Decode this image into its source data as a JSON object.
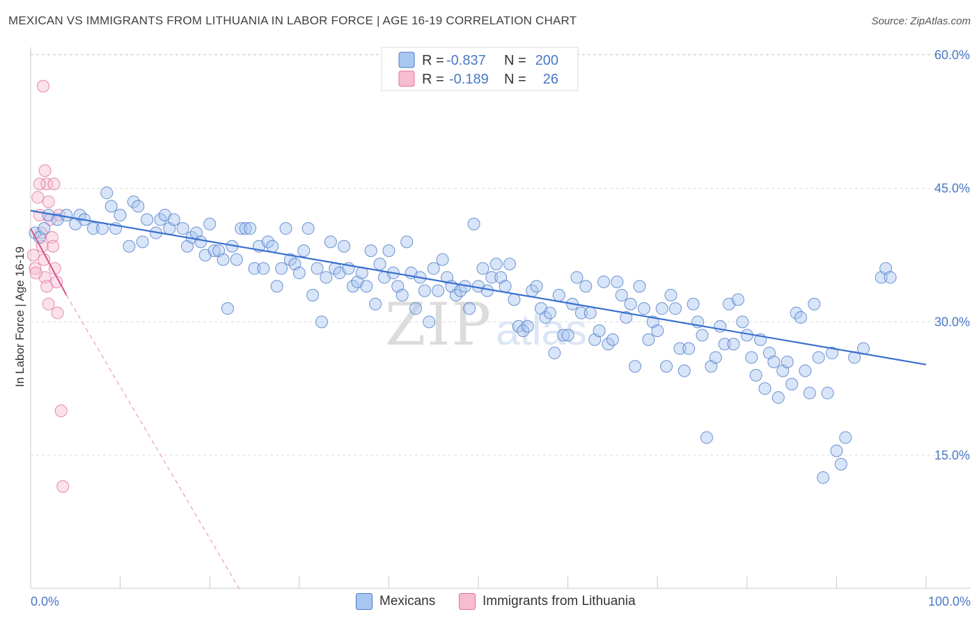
{
  "chart_data": {
    "type": "scatter",
    "title": "MEXICAN VS IMMIGRANTS FROM LITHUANIA IN LABOR FORCE | AGE 16-19 CORRELATION CHART",
    "source": "Source: ZipAtlas.com",
    "ylabel": "In Labor Force | Age 16-19",
    "xlabel": "",
    "xlim": [
      0,
      100
    ],
    "ylim": [
      0,
      62
    ],
    "x_tick_labels": [
      "0.0%",
      "100.0%"
    ],
    "y_ticks": [
      15,
      30,
      45,
      60
    ],
    "y_tick_labels": [
      "15.0%",
      "30.0%",
      "45.0%",
      "60.0%"
    ],
    "grid": true,
    "watermark": "ZIPatlas",
    "legend_position": "top-center",
    "stats": [
      {
        "series": "Mexicans",
        "r_label": "R =",
        "r": "-0.837",
        "n_label": "N =",
        "n": "200"
      },
      {
        "series": "Immigrants from Lithuania",
        "r_label": "R =",
        "r": "-0.189",
        "n_label": "N =",
        "n": "26"
      }
    ],
    "series": [
      {
        "name": "Mexicans",
        "color": "#4a78c6",
        "fill": "#a8c6f0",
        "trend": {
          "x": [
            0,
            100
          ],
          "y": [
            42.5,
            25.2
          ]
        },
        "points": [
          [
            0.5,
            40
          ],
          [
            1,
            39.5
          ],
          [
            1.5,
            40.5
          ],
          [
            2,
            42
          ],
          [
            3,
            41.5
          ],
          [
            4,
            42
          ],
          [
            5,
            41
          ],
          [
            5.5,
            42
          ],
          [
            6,
            41.5
          ],
          [
            7,
            40.5
          ],
          [
            8,
            40.5
          ],
          [
            8.5,
            44.5
          ],
          [
            9,
            43
          ],
          [
            9.5,
            40.5
          ],
          [
            10,
            42
          ],
          [
            11,
            38.5
          ],
          [
            11.5,
            43.5
          ],
          [
            12,
            43
          ],
          [
            12.5,
            39
          ],
          [
            13,
            41.5
          ],
          [
            14,
            40
          ],
          [
            14.5,
            41.5
          ],
          [
            15,
            42
          ],
          [
            15.5,
            40.5
          ],
          [
            16,
            41.5
          ],
          [
            17,
            40.5
          ],
          [
            17.5,
            38.5
          ],
          [
            18,
            39.5
          ],
          [
            18.5,
            40
          ],
          [
            19,
            39
          ],
          [
            19.5,
            37.5
          ],
          [
            20,
            41
          ],
          [
            20.5,
            38
          ],
          [
            21,
            38
          ],
          [
            21.5,
            37
          ],
          [
            22,
            31.5
          ],
          [
            22.5,
            38.5
          ],
          [
            23,
            37
          ],
          [
            23.5,
            40.5
          ],
          [
            24,
            40.5
          ],
          [
            24.5,
            40.5
          ],
          [
            25,
            36
          ],
          [
            25.5,
            38.5
          ],
          [
            26,
            36
          ],
          [
            26.5,
            39
          ],
          [
            27,
            38.5
          ],
          [
            27.5,
            34
          ],
          [
            28,
            36
          ],
          [
            28.5,
            40.5
          ],
          [
            29,
            37
          ],
          [
            29.5,
            36.5
          ],
          [
            30,
            35.5
          ],
          [
            30.5,
            38
          ],
          [
            31,
            40.5
          ],
          [
            31.5,
            33
          ],
          [
            32,
            36
          ],
          [
            32.5,
            30
          ],
          [
            33,
            35
          ],
          [
            33.5,
            39
          ],
          [
            34,
            36
          ],
          [
            34.5,
            35.5
          ],
          [
            35,
            38.5
          ],
          [
            35.5,
            36
          ],
          [
            36,
            34
          ],
          [
            36.5,
            34.5
          ],
          [
            37,
            35.5
          ],
          [
            37.5,
            34
          ],
          [
            38,
            38
          ],
          [
            38.5,
            32
          ],
          [
            39,
            36.5
          ],
          [
            39.5,
            35
          ],
          [
            40,
            38
          ],
          [
            40.5,
            35.5
          ],
          [
            41,
            34
          ],
          [
            41.5,
            33
          ],
          [
            42,
            39
          ],
          [
            42.5,
            35.5
          ],
          [
            43,
            31.5
          ],
          [
            43.5,
            35
          ],
          [
            44,
            33.5
          ],
          [
            44.5,
            30
          ],
          [
            45,
            36
          ],
          [
            45.5,
            33.5
          ],
          [
            46,
            37
          ],
          [
            46.5,
            35
          ],
          [
            47,
            34
          ],
          [
            47.5,
            33
          ],
          [
            48,
            33.5
          ],
          [
            48.5,
            34
          ],
          [
            49,
            31.5
          ],
          [
            49.5,
            41
          ],
          [
            50,
            34
          ],
          [
            50.5,
            36
          ],
          [
            51,
            33.5
          ],
          [
            51.5,
            35
          ],
          [
            52,
            36.5
          ],
          [
            52.5,
            35
          ],
          [
            53,
            34
          ],
          [
            53.5,
            36.5
          ],
          [
            54,
            32.5
          ],
          [
            54.5,
            29.5
          ],
          [
            55,
            29
          ],
          [
            55.5,
            29.5
          ],
          [
            56,
            33.5
          ],
          [
            56.5,
            34
          ],
          [
            57,
            31.5
          ],
          [
            57.5,
            30.5
          ],
          [
            58,
            31
          ],
          [
            58.5,
            26.5
          ],
          [
            59,
            33
          ],
          [
            59.5,
            28.5
          ],
          [
            60,
            28.5
          ],
          [
            60.5,
            32
          ],
          [
            61,
            35
          ],
          [
            61.5,
            31
          ],
          [
            62,
            34
          ],
          [
            62.5,
            31
          ],
          [
            63,
            28
          ],
          [
            63.5,
            29
          ],
          [
            64,
            34.5
          ],
          [
            64.5,
            27.5
          ],
          [
            65,
            28
          ],
          [
            65.5,
            34.5
          ],
          [
            66,
            33
          ],
          [
            66.5,
            30.5
          ],
          [
            67,
            32
          ],
          [
            67.5,
            25
          ],
          [
            68,
            34
          ],
          [
            68.5,
            31.5
          ],
          [
            69,
            28
          ],
          [
            69.5,
            30
          ],
          [
            70,
            29
          ],
          [
            70.5,
            31.5
          ],
          [
            71,
            25
          ],
          [
            71.5,
            33
          ],
          [
            72,
            31.5
          ],
          [
            72.5,
            27
          ],
          [
            73,
            24.5
          ],
          [
            73.5,
            27
          ],
          [
            74,
            32
          ],
          [
            74.5,
            30
          ],
          [
            75,
            28.5
          ],
          [
            75.5,
            17
          ],
          [
            76,
            25
          ],
          [
            76.5,
            26
          ],
          [
            77,
            29.5
          ],
          [
            77.5,
            27.5
          ],
          [
            78,
            32
          ],
          [
            78.5,
            27.5
          ],
          [
            79,
            32.5
          ],
          [
            79.5,
            30
          ],
          [
            80,
            28.5
          ],
          [
            80.5,
            26
          ],
          [
            81,
            24
          ],
          [
            81.5,
            28
          ],
          [
            82,
            22.5
          ],
          [
            82.5,
            26.5
          ],
          [
            83,
            25.5
          ],
          [
            83.5,
            21.5
          ],
          [
            84,
            24.5
          ],
          [
            84.5,
            25.5
          ],
          [
            85,
            23
          ],
          [
            85.5,
            31
          ],
          [
            86,
            30.5
          ],
          [
            86.5,
            24.5
          ],
          [
            87,
            22
          ],
          [
            87.5,
            32
          ],
          [
            88,
            26
          ],
          [
            88.5,
            12.5
          ],
          [
            89,
            22
          ],
          [
            89.5,
            26.5
          ],
          [
            90,
            15.5
          ],
          [
            90.5,
            14
          ],
          [
            91,
            17
          ],
          [
            92,
            26
          ],
          [
            93,
            27
          ],
          [
            95,
            35
          ],
          [
            95.5,
            36
          ],
          [
            96,
            35
          ]
        ]
      },
      {
        "name": "Immigrants from Lithuania",
        "color": "#e0709a",
        "fill": "#f7bcd0",
        "trend": {
          "x": [
            0,
            4
          ],
          "y": [
            40.5,
            33
          ]
        },
        "trend_ext": {
          "x": [
            4,
            23.3
          ],
          "y": [
            33,
            0
          ]
        },
        "points": [
          [
            0.5,
            36
          ],
          [
            0.8,
            44
          ],
          [
            1,
            42
          ],
          [
            1.2,
            40
          ],
          [
            1.3,
            38.5
          ],
          [
            1.5,
            37
          ],
          [
            1.6,
            35
          ],
          [
            1.8,
            34
          ],
          [
            2,
            32
          ],
          [
            0.3,
            37.5
          ],
          [
            0.6,
            35.5
          ],
          [
            1.4,
            56.5
          ],
          [
            1.6,
            47
          ],
          [
            1.8,
            45.5
          ],
          [
            2,
            43.5
          ],
          [
            2.2,
            41.5
          ],
          [
            2.4,
            39.5
          ],
          [
            2.5,
            38.5
          ],
          [
            2.7,
            36
          ],
          [
            2.9,
            34.5
          ],
          [
            3,
            31
          ],
          [
            3.2,
            42
          ],
          [
            3.4,
            20
          ],
          [
            3.6,
            11.5
          ],
          [
            1,
            45.5
          ],
          [
            2.6,
            45.5
          ]
        ]
      }
    ]
  },
  "legend": {
    "items": [
      "Mexicans",
      "Immigrants from Lithuania"
    ]
  }
}
